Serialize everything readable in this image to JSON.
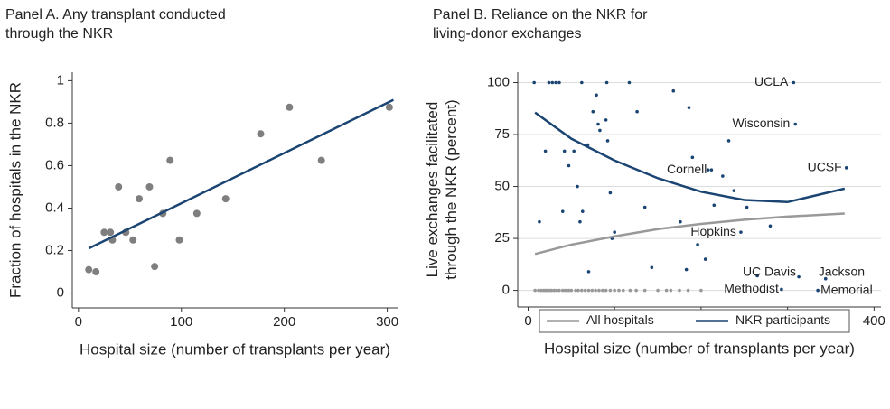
{
  "chart_data": [
    {
      "type": "scatter",
      "title": [
        "Panel A. Any transplant conducted",
        "through the NKR"
      ],
      "x_label": "Hospital size (number of transplants per year)",
      "y_label": [
        "Fraction of hospitals in the NKR"
      ],
      "xlim": [
        -6,
        310
      ],
      "ylim": [
        -0.07,
        1.04
      ],
      "xticks": [
        0,
        100,
        200,
        300
      ],
      "yticks": [
        0,
        0.2,
        0.4,
        0.6,
        0.8,
        1
      ],
      "grid": false,
      "points": [
        {
          "color": "#7f7f7f",
          "x": [
            10,
            17,
            25,
            31,
            33,
            39,
            46,
            53,
            59,
            69,
            74,
            82,
            89,
            98,
            115,
            143,
            177,
            205,
            236,
            302
          ],
          "values": [
            0.11,
            0.1,
            0.286,
            0.286,
            0.25,
            0.5,
            0.286,
            0.25,
            0.444,
            0.5,
            0.125,
            0.375,
            0.625,
            0.25,
            0.375,
            0.444,
            0.75,
            0.875,
            0.625,
            0.875
          ]
        }
      ],
      "fit_line": {
        "color": "#1a4472",
        "x": [
          10,
          306
        ],
        "values": [
          0.21,
          0.91
        ]
      }
    },
    {
      "type": "scatter",
      "title": [
        "Panel B. Reliance on the NKR for",
        "living-donor exchanges"
      ],
      "x_label": "Hospital size (number of transplants per year)",
      "y_label": [
        "Live exchanges facilitated",
        "through the NKR (percent)"
      ],
      "xlim": [
        -12,
        408
      ],
      "ylim": [
        -8,
        105
      ],
      "xticks": [
        0,
        100,
        200,
        300,
        400
      ],
      "yticks": [
        0,
        25,
        50,
        75,
        100
      ],
      "grid": true,
      "legend": "bottom-right",
      "points": [
        {
          "color": "#999999",
          "x": [
            8,
            12,
            15,
            18,
            20,
            22,
            25,
            27,
            30,
            33,
            36,
            40,
            43,
            47,
            50,
            55,
            58,
            62,
            66,
            70,
            74,
            78,
            82,
            86,
            90,
            95,
            100,
            105,
            110,
            118,
            125,
            135,
            150,
            160,
            165,
            175,
            185,
            200
          ],
          "values": [
            0,
            0,
            0,
            0,
            0,
            0,
            0,
            0,
            0,
            0,
            0,
            0,
            0,
            0,
            0,
            0,
            0,
            0,
            0,
            0,
            0,
            0,
            0,
            0,
            0,
            0,
            0,
            0,
            0,
            0,
            0,
            0,
            0,
            0,
            0,
            0,
            0,
            0
          ]
        },
        {
          "color": "#1a4472",
          "x": [
            7,
            24,
            28,
            32,
            36,
            62,
            91,
            117,
            13,
            42,
            47,
            53,
            57,
            63,
            69,
            75,
            79,
            81,
            83,
            90,
            95,
            97,
            100,
            126,
            135,
            143,
            168,
            176,
            183,
            186,
            190,
            196,
            205,
            208,
            215,
            225,
            232,
            238,
            253,
            265,
            280,
            60,
            70,
            92,
            20,
            40
          ],
          "values": [
            100,
            100,
            100,
            100,
            100,
            100,
            100,
            100,
            33,
            67,
            60,
            67,
            50,
            38,
            70,
            86,
            94,
            80,
            77,
            82,
            47,
            25,
            28,
            86,
            40,
            11,
            96,
            33,
            10,
            88,
            64,
            22,
            15,
            58,
            41,
            55,
            72,
            48,
            40,
            7,
            31,
            33,
            9,
            72,
            67,
            38
          ]
        }
      ],
      "annotations": [
        {
          "text": "UCLA",
          "x": 307,
          "y": 100
        },
        {
          "text": "Wisconsin",
          "x": 309,
          "y": 80
        },
        {
          "text": "UCSF",
          "x": 368,
          "y": 59
        },
        {
          "text": "Cornell",
          "x": 212,
          "y": 58
        },
        {
          "text": "Hopkins",
          "x": 246,
          "y": 28
        },
        {
          "text": "UC Davis",
          "x": 313,
          "y": 6.5
        },
        {
          "text": "Jackson",
          "x": 344,
          "y": 5.6
        },
        {
          "text": "Methodist",
          "x": 293,
          "y": 0.5
        },
        {
          "text": "Memorial",
          "x": 335,
          "y": 0
        }
      ],
      "series": [
        {
          "name": "All hospitals",
          "color": "#999999",
          "x": [
            8,
            50,
            100,
            150,
            200,
            250,
            300,
            366
          ],
          "values": [
            17.5,
            22,
            26,
            29.5,
            32,
            34,
            35.5,
            37
          ]
        },
        {
          "name": "NKR participants",
          "color": "#1a4472",
          "x": [
            8,
            50,
            100,
            150,
            200,
            250,
            300,
            366
          ],
          "values": [
            85.6,
            73,
            62.5,
            54,
            47.5,
            43.5,
            42.5,
            49
          ]
        }
      ]
    }
  ]
}
